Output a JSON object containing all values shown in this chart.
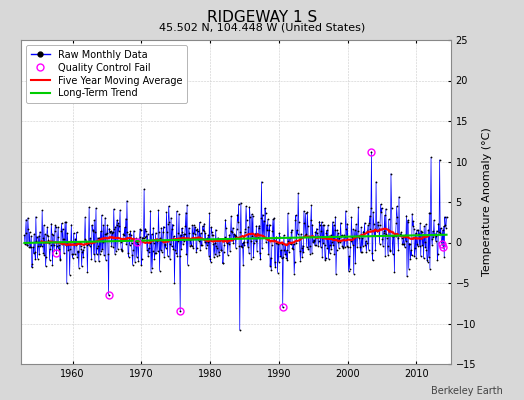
{
  "title": "RIDGEWAY 1 S",
  "subtitle": "45.502 N, 104.448 W (United States)",
  "ylabel": "Temperature Anomaly (°C)",
  "credit": "Berkeley Earth",
  "start_year": 1953,
  "end_year": 2014,
  "ylim": [
    -15,
    25
  ],
  "yticks": [
    -15,
    -10,
    -5,
    0,
    5,
    10,
    15,
    20,
    25
  ],
  "background_color": "#d8d8d8",
  "plot_bg_color": "#ffffff",
  "raw_line_color": "#0000ff",
  "raw_dot_color": "#000000",
  "moving_avg_color": "#ff0000",
  "trend_color": "#00cc00",
  "qc_fail_color": "#ff00ff",
  "legend_loc": "upper left",
  "title_fontsize": 11,
  "subtitle_fontsize": 8,
  "tick_fontsize": 7,
  "ylabel_fontsize": 8,
  "legend_fontsize": 7,
  "credit_fontsize": 7,
  "seed": 42
}
